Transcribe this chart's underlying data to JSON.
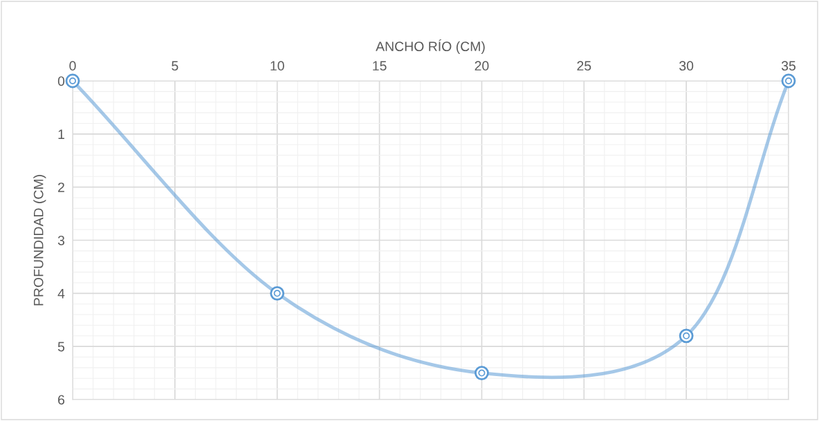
{
  "chart_data": {
    "type": "line",
    "xlabel": "ANCHO RÍO (CM)",
    "ylabel": "PROFUNDIDAD (CM)",
    "series": [
      {
        "color": "#5b9bd5",
        "x": [
          0,
          10,
          20,
          30,
          35
        ],
        "values": [
          0,
          4,
          5.5,
          4.8,
          0
        ]
      }
    ],
    "xlim": [
      0,
      35
    ],
    "xticks": [
      0,
      5,
      10,
      15,
      20,
      25,
      30,
      35
    ],
    "ylim": [
      6,
      0
    ],
    "yticks": [
      0,
      1,
      2,
      3,
      4,
      5,
      6
    ],
    "grid": true,
    "marker": "circle",
    "line_style": "solid"
  }
}
